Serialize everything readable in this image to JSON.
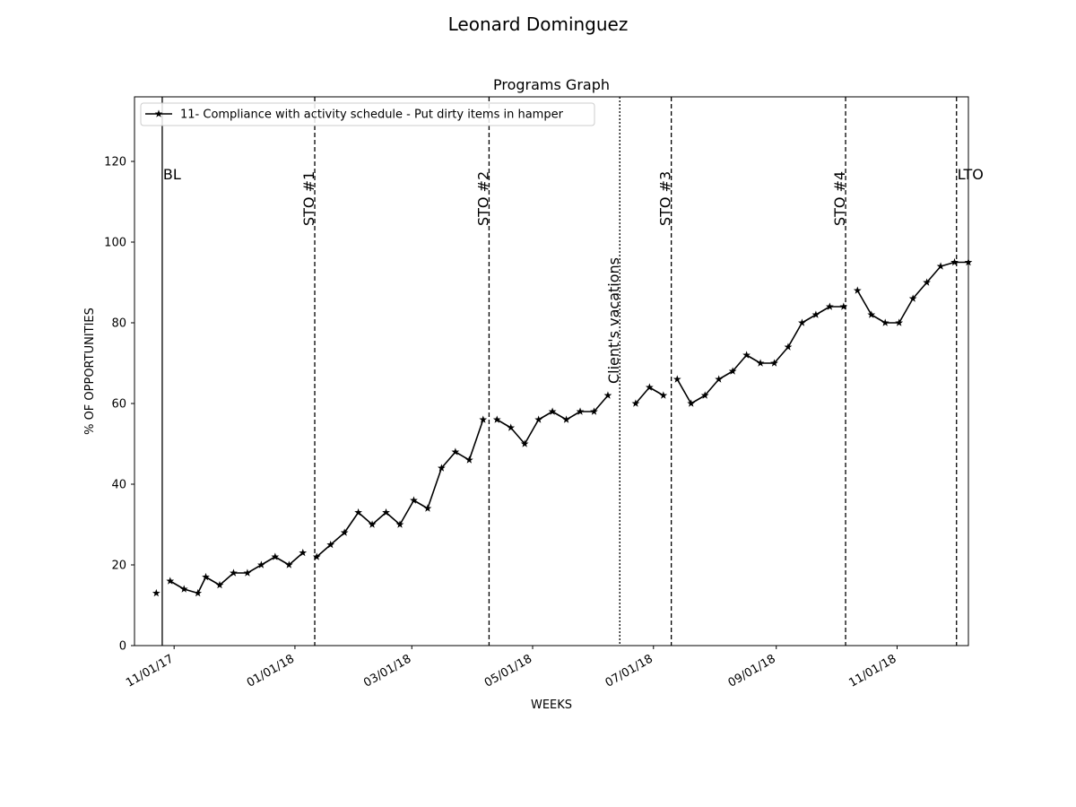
{
  "figure": {
    "suptitle": "Leonard  Dominguez"
  },
  "chart_data": {
    "type": "line",
    "title": "Programs Graph",
    "xlabel": "WEEKS",
    "ylabel": "% OF OPPORTUNITIES",
    "ylim": [
      0,
      136
    ],
    "xlim": [
      "2017-10-12",
      "2018-12-07"
    ],
    "x_tick_labels": [
      {
        "date": "2017-11-01",
        "label": "11/01/17"
      },
      {
        "date": "2018-01-01",
        "label": "01/01/18"
      },
      {
        "date": "2018-03-01",
        "label": "03/01/18"
      },
      {
        "date": "2018-05-01",
        "label": "05/01/18"
      },
      {
        "date": "2018-07-01",
        "label": "07/01/18"
      },
      {
        "date": "2018-09-01",
        "label": "09/01/18"
      },
      {
        "date": "2018-11-01",
        "label": "11/01/18"
      }
    ],
    "y_ticks": [
      0,
      20,
      40,
      60,
      80,
      100,
      120
    ],
    "grid": false,
    "legend_position": "top-left",
    "line_color": "#000000",
    "marker": "star",
    "series": [
      {
        "name": "11- Compliance with activity schedule - Put dirty items in hamper",
        "segments": [
          {
            "points": [
              [
                "2017-10-23",
                13
              ]
            ]
          },
          {
            "points": [
              [
                "2017-10-30",
                16
              ],
              [
                "2017-11-06",
                14
              ],
              [
                "2017-11-13",
                13
              ],
              [
                "2017-11-17",
                17
              ],
              [
                "2017-11-24",
                15
              ],
              [
                "2017-12-01",
                18
              ],
              [
                "2017-12-08",
                18
              ],
              [
                "2017-12-15",
                20
              ],
              [
                "2017-12-22",
                22
              ],
              [
                "2017-12-29",
                20
              ],
              [
                "2018-01-05",
                23
              ]
            ]
          },
          {
            "points": [
              [
                "2018-01-12",
                22
              ],
              [
                "2018-01-19",
                25
              ],
              [
                "2018-01-26",
                28
              ],
              [
                "2018-02-02",
                33
              ],
              [
                "2018-02-09",
                30
              ],
              [
                "2018-02-16",
                33
              ],
              [
                "2018-02-23",
                30
              ],
              [
                "2018-03-02",
                36
              ],
              [
                "2018-03-09",
                34
              ],
              [
                "2018-03-16",
                44
              ],
              [
                "2018-03-23",
                48
              ],
              [
                "2018-03-30",
                46
              ],
              [
                "2018-04-06",
                56
              ]
            ]
          },
          {
            "points": [
              [
                "2018-04-13",
                56
              ],
              [
                "2018-04-20",
                54
              ],
              [
                "2018-04-27",
                50
              ],
              [
                "2018-05-04",
                56
              ],
              [
                "2018-05-11",
                58
              ],
              [
                "2018-05-18",
                56
              ],
              [
                "2018-05-25",
                58
              ],
              [
                "2018-06-01",
                58
              ],
              [
                "2018-06-08",
                62
              ]
            ]
          },
          {
            "points": [
              [
                "2018-06-22",
                60
              ],
              [
                "2018-06-29",
                64
              ],
              [
                "2018-07-06",
                62
              ]
            ]
          },
          {
            "points": [
              [
                "2018-07-13",
                66
              ],
              [
                "2018-07-20",
                60
              ],
              [
                "2018-07-27",
                62
              ],
              [
                "2018-08-03",
                66
              ],
              [
                "2018-08-10",
                68
              ],
              [
                "2018-08-17",
                72
              ],
              [
                "2018-08-24",
                70
              ],
              [
                "2018-08-31",
                70
              ],
              [
                "2018-09-07",
                74
              ],
              [
                "2018-09-14",
                80
              ],
              [
                "2018-09-21",
                82
              ],
              [
                "2018-09-28",
                84
              ],
              [
                "2018-10-05",
                84
              ]
            ]
          },
          {
            "points": [
              [
                "2018-10-12",
                88
              ],
              [
                "2018-10-19",
                82
              ],
              [
                "2018-10-26",
                80
              ],
              [
                "2018-11-02",
                80
              ],
              [
                "2018-11-09",
                86
              ],
              [
                "2018-11-16",
                90
              ],
              [
                "2018-11-23",
                94
              ],
              [
                "2018-11-30",
                95
              ],
              [
                "2018-12-07",
                95
              ]
            ]
          }
        ]
      }
    ],
    "phase_lines": [
      {
        "date": "2017-10-26",
        "label": "BL",
        "style": "solid",
        "label_orientation": "horizontal"
      },
      {
        "date": "2018-01-11",
        "label": "STO #1",
        "style": "dashed",
        "label_orientation": "vertical"
      },
      {
        "date": "2018-04-09",
        "label": "STO #2",
        "style": "dashed",
        "label_orientation": "vertical"
      },
      {
        "date": "2018-06-14",
        "label": "Client's vacations",
        "style": "dotted",
        "label_orientation": "vertical"
      },
      {
        "date": "2018-07-10",
        "label": "STO #3",
        "style": "dashed",
        "label_orientation": "vertical"
      },
      {
        "date": "2018-10-06",
        "label": "STO #4",
        "style": "dashed",
        "label_orientation": "vertical"
      },
      {
        "date": "2018-12-01",
        "label": "LTO",
        "style": "dashed",
        "label_orientation": "horizontal"
      }
    ]
  }
}
